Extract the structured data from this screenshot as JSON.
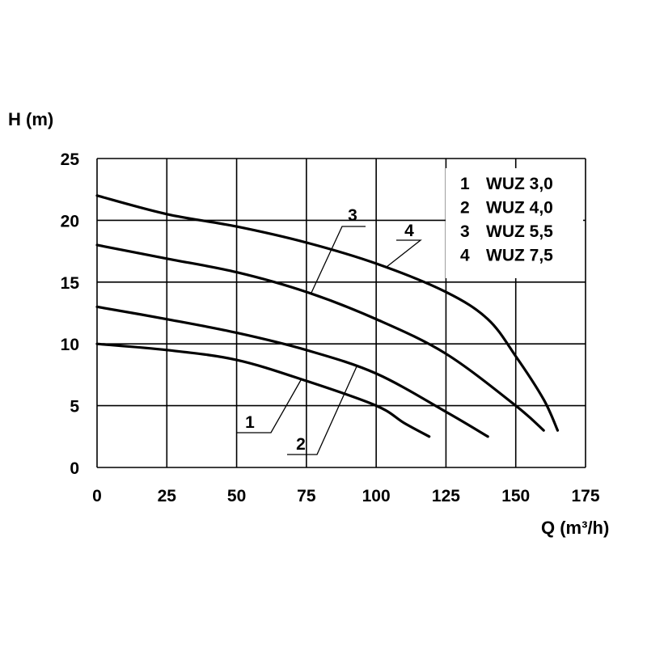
{
  "chart_data": {
    "type": "line",
    "title": "",
    "ylabel": "H (m)",
    "xlabel": "Q (m³/h)",
    "xlim": [
      0,
      175
    ],
    "ylim": [
      0,
      25
    ],
    "x_ticks": [
      0,
      25,
      50,
      75,
      100,
      125,
      150,
      175
    ],
    "y_ticks": [
      0,
      5,
      10,
      15,
      20,
      25
    ],
    "grid": true,
    "legend_position": "top-right",
    "series": [
      {
        "name": "WUZ 3,0",
        "label": "1",
        "legend_index": "1",
        "x": [
          0,
          25,
          50,
          75,
          100,
          110,
          119
        ],
        "y": [
          10,
          9.5,
          8.7,
          7.0,
          5.0,
          3.6,
          2.5
        ]
      },
      {
        "name": "WUZ 4,0",
        "label": "2",
        "legend_index": "2",
        "x": [
          0,
          25,
          50,
          75,
          100,
          125,
          140
        ],
        "y": [
          13,
          12,
          10.9,
          9.5,
          7.6,
          4.5,
          2.5
        ]
      },
      {
        "name": "WUZ 5,5",
        "label": "3",
        "legend_index": "3",
        "x": [
          0,
          25,
          50,
          75,
          100,
          125,
          150,
          160
        ],
        "y": [
          18,
          16.9,
          15.8,
          14.2,
          12.0,
          9.2,
          5.0,
          3.0
        ]
      },
      {
        "name": "WUZ 7,5",
        "label": "4",
        "legend_index": "4",
        "x": [
          0,
          25,
          50,
          75,
          100,
          125,
          140,
          150,
          160,
          165
        ],
        "y": [
          22,
          20.5,
          19.5,
          18.2,
          16.5,
          14.2,
          12.0,
          9.0,
          5.5,
          3.0
        ]
      }
    ],
    "annotations": [
      "1",
      "2",
      "3",
      "4"
    ]
  }
}
